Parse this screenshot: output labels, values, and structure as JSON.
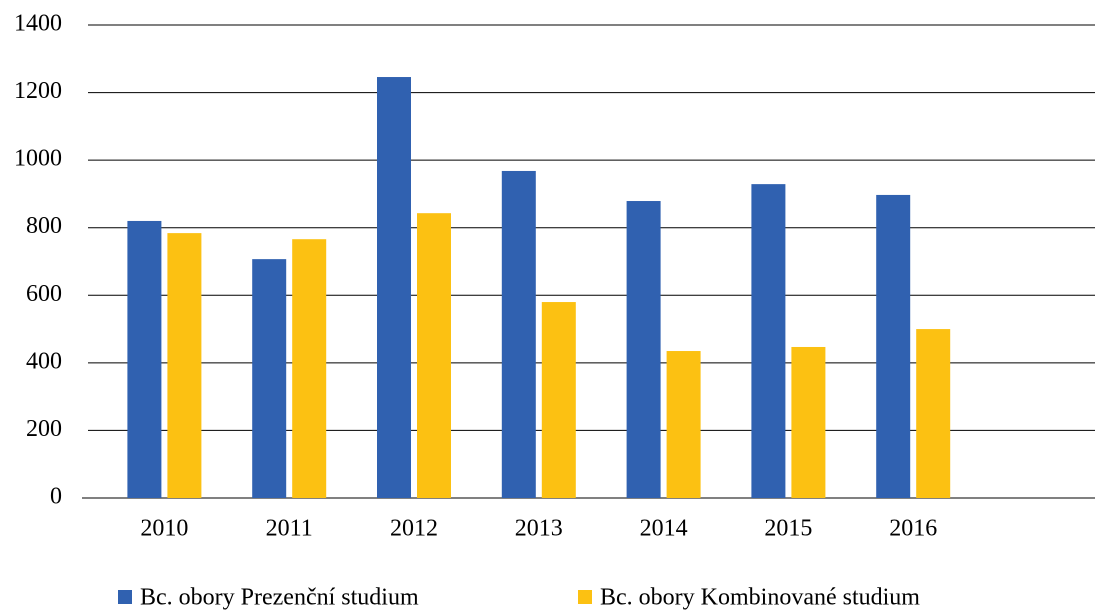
{
  "chart_data": {
    "type": "bar",
    "categories": [
      "2010",
      "2011",
      "2012",
      "2013",
      "2014",
      "2015",
      "2016",
      null
    ],
    "series": [
      {
        "name": "Bc. obory Prezenční studium",
        "color": "#3061b0",
        "values": [
          820,
          707,
          1246,
          968,
          879,
          929,
          897,
          null
        ]
      },
      {
        "name": "Bc. obory Kombinované studium",
        "color": "#fcc112",
        "values": [
          784,
          766,
          843,
          580,
          435,
          447,
          500,
          null
        ]
      }
    ],
    "ylim": [
      0,
      1400
    ],
    "yticks": [
      0,
      200,
      400,
      600,
      800,
      1000,
      1200,
      1400
    ],
    "grid": true,
    "legend": "bottom"
  }
}
